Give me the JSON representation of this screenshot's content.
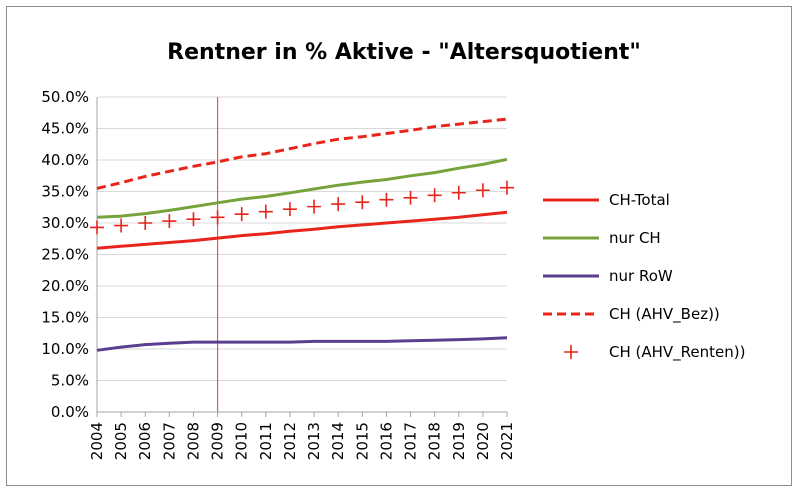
{
  "chart_data": {
    "type": "line",
    "title": "Rentner in % Aktive - \"Altersquotient\"",
    "xlabel": "",
    "ylabel": "",
    "x": [
      "2004",
      "2005",
      "2006",
      "2007",
      "2008",
      "2009",
      "2010",
      "2011",
      "2012",
      "2013",
      "2014",
      "2015",
      "2016",
      "2017",
      "2018",
      "2019",
      "2020",
      "2021"
    ],
    "ylim": [
      0,
      0.5
    ],
    "y_ticks": [
      "0.0%",
      "5.0%",
      "10.0%",
      "15.0%",
      "20.0%",
      "25.0%",
      "30.0%",
      "35.0%",
      "40.0%",
      "45.0%",
      "50.0%"
    ],
    "grid": true,
    "legend_position": "right",
    "marker_year": "2009",
    "colors": {
      "ch_total": "#e8251b",
      "nur_ch": "#77a33d",
      "nur_row": "#5b3e8f",
      "ahv_bez": "#e8251b",
      "ahv_renten": "#e8251b",
      "marker_line": "#ee5555",
      "grid": "#d9d9d9",
      "axis": "#a6a6a6"
    },
    "series": [
      {
        "name": "CH-Total",
        "style": "solid",
        "values": [
          0.26,
          0.263,
          0.266,
          0.269,
          0.272,
          0.276,
          0.28,
          0.283,
          0.287,
          0.29,
          0.294,
          0.297,
          0.3,
          0.303,
          0.306,
          0.309,
          0.313,
          0.317
        ]
      },
      {
        "name": "nur CH",
        "style": "solid",
        "values": [
          0.309,
          0.311,
          0.315,
          0.32,
          0.326,
          0.332,
          0.338,
          0.342,
          0.348,
          0.354,
          0.36,
          0.365,
          0.369,
          0.375,
          0.38,
          0.387,
          0.393,
          0.401
        ]
      },
      {
        "name": "nur RoW",
        "style": "solid",
        "values": [
          0.098,
          0.103,
          0.107,
          0.109,
          0.111,
          0.111,
          0.111,
          0.111,
          0.111,
          0.112,
          0.112,
          0.112,
          0.112,
          0.113,
          0.114,
          0.115,
          0.116,
          0.118
        ]
      },
      {
        "name": "CH (AHV_Bez))",
        "style": "dashed",
        "values": [
          0.355,
          0.364,
          0.374,
          0.382,
          0.39,
          0.397,
          0.405,
          0.41,
          0.418,
          0.426,
          0.433,
          0.437,
          0.442,
          0.447,
          0.453,
          0.457,
          0.461,
          0.465
        ]
      },
      {
        "name": "CH (AHV_Renten))",
        "style": "plus",
        "values": [
          0.293,
          0.296,
          0.3,
          0.303,
          0.306,
          0.309,
          0.314,
          0.318,
          0.322,
          0.326,
          0.33,
          0.333,
          0.337,
          0.34,
          0.344,
          0.348,
          0.352,
          0.356
        ]
      }
    ]
  }
}
